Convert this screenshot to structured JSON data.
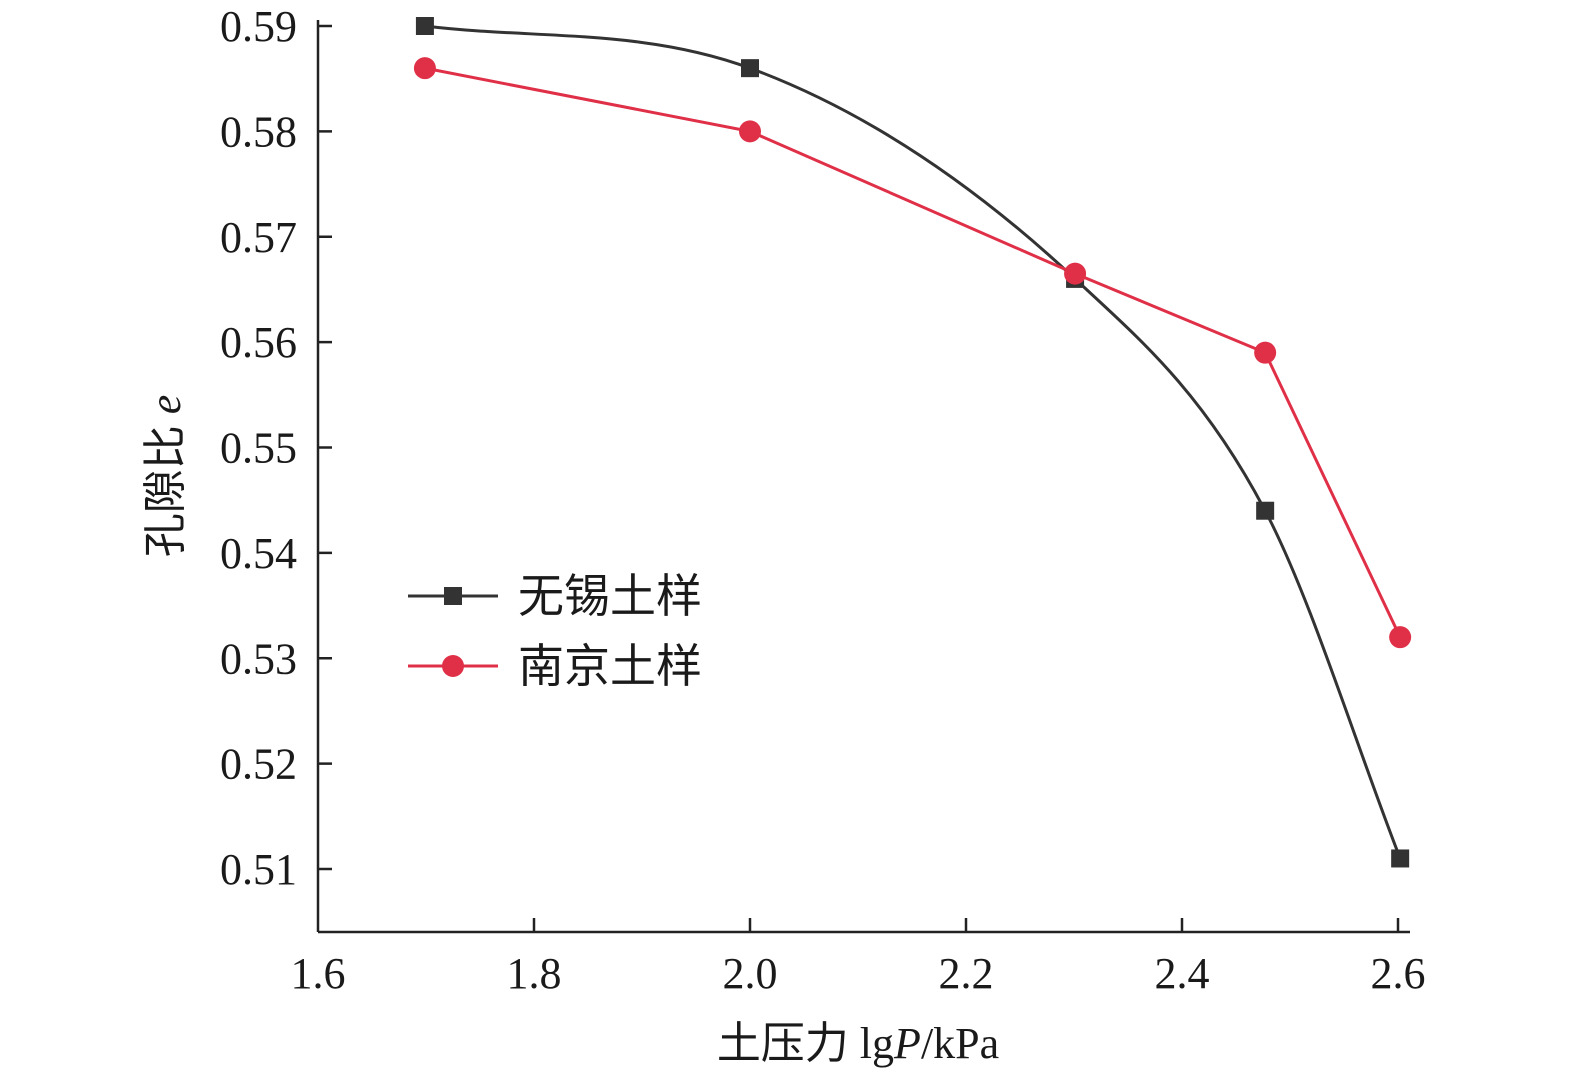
{
  "chart_data": {
    "type": "line",
    "xlabel": {
      "prefix": "土压力 lg",
      "italic": "P",
      "suffix": "/kPa"
    },
    "ylabel": {
      "prefix": "孔隙比 ",
      "italic": "e"
    },
    "xlim": [
      1.6,
      2.6
    ],
    "ylim": [
      0.505,
      0.59
    ],
    "x_ticks": [
      "1.6",
      "1.8",
      "2.0",
      "2.2",
      "2.4",
      "2.6"
    ],
    "y_ticks": [
      "0.59",
      "0.58",
      "0.57",
      "0.56",
      "0.55",
      "0.54",
      "0.53",
      "0.52",
      "0.51"
    ],
    "grid": false,
    "legend_position": "left-middle",
    "series": [
      {
        "name": "无锡土样",
        "color": "#333333",
        "marker": "square",
        "smooth": true,
        "x": [
          1.699,
          2.0,
          2.301,
          2.477,
          2.602
        ],
        "y": [
          0.59,
          0.586,
          0.566,
          0.544,
          0.511
        ]
      },
      {
        "name": "南京土样",
        "color": "#e03048",
        "marker": "circle",
        "smooth": false,
        "x": [
          1.699,
          2.0,
          2.301,
          2.477,
          2.602
        ],
        "y": [
          0.586,
          0.58,
          0.5665,
          0.559,
          0.532
        ]
      }
    ]
  }
}
